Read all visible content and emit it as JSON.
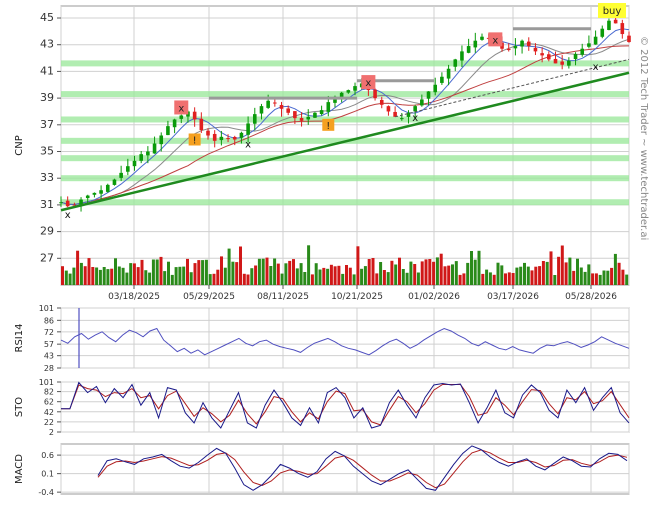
{
  "chart_data": {
    "type": "line",
    "symbol": "CNP",
    "copyright": "© 2012 Tech Trader ~ www.techtrader.ai",
    "signal": "buy",
    "price_panel": {
      "ylabel": "CNP",
      "yticks": [
        27,
        29,
        31,
        33,
        35,
        37,
        39,
        41,
        43,
        45
      ],
      "ylim": [
        25.0,
        45.9
      ],
      "x_tick_labels": [
        "03/18/2025",
        "05/29/2025",
        "08/11/2025",
        "10/21/2025",
        "01/02/2026",
        "03/17/2026",
        "05/28/2026"
      ],
      "close": [
        31.2,
        30.9,
        31.0,
        31.4,
        31.7,
        31.9,
        32.1,
        32.5,
        32.9,
        33.4,
        33.9,
        34.3,
        34.8,
        35.0,
        35.6,
        36.2,
        36.9,
        37.4,
        37.7,
        38.0,
        37.4,
        36.6,
        36.2,
        35.8,
        36.1,
        36.0,
        35.9,
        36.4,
        37.1,
        37.8,
        38.4,
        38.8,
        38.6,
        38.2,
        37.9,
        37.5,
        37.3,
        37.6,
        37.9,
        38.1,
        38.7,
        39.1,
        39.4,
        39.6,
        39.9,
        40.1,
        39.6,
        39.0,
        38.5,
        38.0,
        37.6,
        37.5,
        37.9,
        38.4,
        38.9,
        39.5,
        40.0,
        40.6,
        41.2,
        41.9,
        42.5,
        42.9,
        43.3,
        43.6,
        43.5,
        43.1,
        42.7,
        42.6,
        42.9,
        43.3,
        42.9,
        42.5,
        42.2,
        41.9,
        41.6,
        41.5,
        41.8,
        42.3,
        42.7,
        43.1,
        43.6,
        44.2,
        44.8,
        44.6,
        43.8,
        43.2
      ],
      "support_lines": [
        41.6,
        39.3,
        37.4,
        35.8,
        34.5,
        33.0,
        31.2
      ],
      "resistance_segments": [
        {
          "start": "05/29/2025",
          "end": "10/21/2025",
          "y": 39.0
        },
        {
          "start": "10/21/2025",
          "end": "01/02/2026",
          "y": 40.3
        },
        {
          "start": "03/17/2026",
          "end": "05/28/2026",
          "y": 44.2
        }
      ],
      "trendline": {
        "from": 30.6,
        "to": 40.9
      },
      "markers": [
        {
          "type": "x",
          "color": "red",
          "index": 18,
          "y": 38.3
        },
        {
          "type": "x",
          "color": "red",
          "index": 46,
          "y": 40.2
        },
        {
          "type": "x",
          "color": "red",
          "index": 65,
          "y": 43.4
        },
        {
          "type": "!",
          "color": "orange",
          "index": 20,
          "y": 35.9
        },
        {
          "type": "!",
          "color": "orange",
          "index": 40,
          "y": 37.0
        },
        {
          "type": "x",
          "color": "black",
          "index": 1,
          "y": 30.3
        },
        {
          "type": "x",
          "color": "black",
          "index": 28,
          "y": 35.6
        },
        {
          "type": "x",
          "color": "black",
          "index": 53,
          "y": 37.6
        },
        {
          "type": "x",
          "color": "black",
          "index": 80,
          "y": 41.4
        }
      ]
    },
    "rsi_panel": {
      "ylabel": "RSI14",
      "yticks": [
        28,
        43,
        57,
        72,
        86,
        101
      ],
      "ylim": [
        28,
        101
      ],
      "values": [
        62,
        58,
        66,
        70,
        63,
        68,
        72,
        65,
        60,
        68,
        74,
        71,
        66,
        73,
        76,
        62,
        55,
        48,
        52,
        46,
        50,
        44,
        48,
        52,
        56,
        60,
        64,
        58,
        55,
        60,
        62,
        57,
        54,
        52,
        50,
        47,
        53,
        58,
        61,
        64,
        60,
        55,
        52,
        50,
        47,
        44,
        49,
        55,
        60,
        63,
        58,
        52,
        56,
        62,
        67,
        72,
        76,
        73,
        68,
        64,
        58,
        55,
        60,
        56,
        52,
        50,
        54,
        50,
        48,
        46,
        52,
        56,
        55,
        58,
        60,
        57,
        53,
        56,
        60,
        66,
        62,
        58,
        55,
        52
      ]
    },
    "sto_panel": {
      "ylabel": "STO",
      "yticks": [
        2,
        22,
        42,
        62,
        82,
        101
      ],
      "ylim": [
        2,
        101
      ],
      "k": [
        48,
        48,
        100,
        80,
        92,
        60,
        88,
        70,
        96,
        55,
        80,
        30,
        90,
        85,
        40,
        20,
        60,
        30,
        10,
        45,
        80,
        20,
        10,
        55,
        85,
        60,
        30,
        15,
        50,
        20,
        80,
        90,
        70,
        30,
        50,
        10,
        15,
        60,
        85,
        55,
        30,
        70,
        95,
        98,
        95,
        97,
        60,
        20,
        50,
        85,
        40,
        30,
        75,
        95,
        80,
        45,
        30,
        85,
        60,
        90,
        45,
        70,
        90,
        40,
        20
      ],
      "d": [
        48,
        48,
        95,
        88,
        85,
        72,
        80,
        78,
        88,
        70,
        74,
        48,
        74,
        83,
        58,
        33,
        50,
        38,
        22,
        35,
        65,
        38,
        18,
        42,
        72,
        68,
        42,
        22,
        40,
        28,
        62,
        83,
        78,
        44,
        46,
        22,
        16,
        45,
        72,
        62,
        40,
        58,
        85,
        96,
        96,
        96,
        72,
        35,
        40,
        70,
        55,
        36,
        62,
        86,
        84,
        58,
        38,
        70,
        66,
        82,
        58,
        64,
        82,
        56,
        30
      ]
    },
    "macd_panel": {
      "ylabel": "MACD",
      "yticks": [
        -0.4,
        0.1,
        0.6
      ],
      "ylim": [
        -0.45,
        0.9
      ],
      "macd": [
        0.05,
        0.45,
        0.5,
        0.42,
        0.35,
        0.5,
        0.55,
        0.62,
        0.45,
        0.3,
        0.25,
        0.4,
        0.6,
        0.78,
        0.65,
        0.25,
        -0.2,
        -0.35,
        -0.2,
        0.05,
        0.35,
        0.25,
        0.1,
        0.0,
        0.15,
        0.5,
        0.7,
        0.58,
        0.3,
        0.1,
        -0.1,
        -0.2,
        -0.05,
        0.1,
        0.2,
        -0.05,
        -0.3,
        -0.35,
        0.0,
        0.35,
        0.65,
        0.85,
        0.75,
        0.55,
        0.4,
        0.3,
        0.42,
        0.5,
        0.3,
        0.2,
        0.38,
        0.55,
        0.45,
        0.3,
        0.28,
        0.5,
        0.65,
        0.62,
        0.45
      ],
      "signal": [
        0.0,
        0.3,
        0.42,
        0.44,
        0.4,
        0.44,
        0.5,
        0.56,
        0.52,
        0.42,
        0.32,
        0.34,
        0.46,
        0.62,
        0.66,
        0.48,
        0.14,
        -0.14,
        -0.22,
        -0.1,
        0.12,
        0.2,
        0.16,
        0.08,
        0.1,
        0.3,
        0.52,
        0.58,
        0.46,
        0.26,
        0.06,
        -0.1,
        -0.1,
        0.0,
        0.12,
        0.06,
        -0.14,
        -0.28,
        -0.18,
        0.12,
        0.42,
        0.66,
        0.74,
        0.66,
        0.52,
        0.4,
        0.4,
        0.46,
        0.4,
        0.28,
        0.32,
        0.46,
        0.48,
        0.38,
        0.32,
        0.42,
        0.56,
        0.6,
        0.54
      ]
    },
    "colors": {
      "up": "#0a9a0a",
      "down": "#e02020",
      "volume_up": "#2a8a1a",
      "volume_down": "#d01818",
      "indicator_line": "#5050c0",
      "signal_line": "#b02020",
      "support_band": "#9de89d",
      "trendline": "#1f8a1f",
      "buy_badge": "#ffff33",
      "grid": "#d0d0d0"
    }
  }
}
